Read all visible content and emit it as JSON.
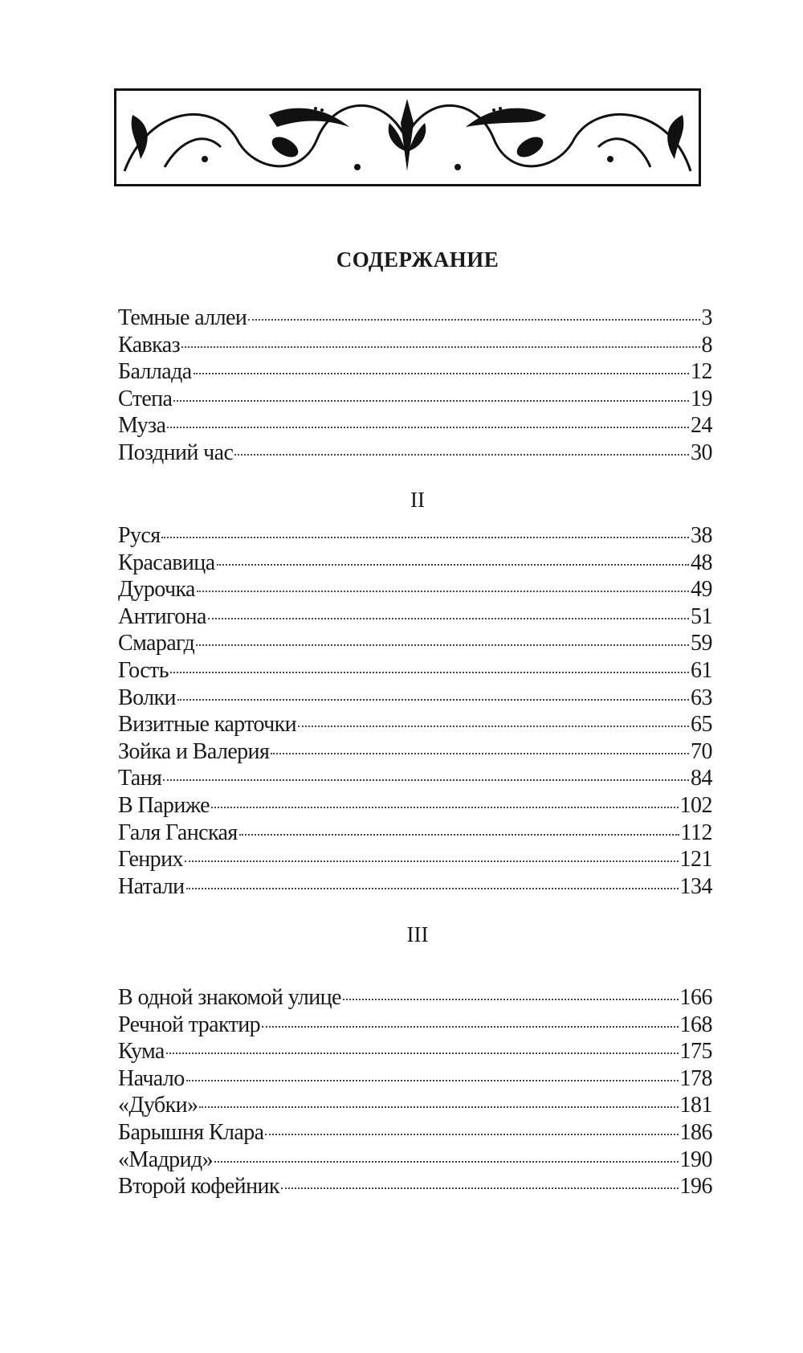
{
  "title": "СОДЕРЖАНИЕ",
  "sections": [
    {
      "heading": "",
      "entries": [
        {
          "title": "Темные аллеи",
          "page": "3"
        },
        {
          "title": "Кавказ",
          "page": "8"
        },
        {
          "title": "Баллада",
          "page": "12"
        },
        {
          "title": "Степа",
          "page": "19"
        },
        {
          "title": "Муза",
          "page": "24"
        },
        {
          "title": "Поздний час",
          "page": "30"
        }
      ]
    },
    {
      "heading": "II",
      "entries": [
        {
          "title": "Руся",
          "page": "38"
        },
        {
          "title": "Красавица",
          "page": "48"
        },
        {
          "title": "Дурочка",
          "page": "49"
        },
        {
          "title": "Антигона",
          "page": "51"
        },
        {
          "title": "Смарагд",
          "page": "59"
        },
        {
          "title": "Гость",
          "page": "61"
        },
        {
          "title": "Волки",
          "page": "63"
        },
        {
          "title": "Визитные карточки",
          "page": "65"
        },
        {
          "title": "Зойка и Валерия",
          "page": "70"
        },
        {
          "title": "Таня",
          "page": "84"
        },
        {
          "title": "В Париже",
          "page": "102"
        },
        {
          "title": "Галя Ганская",
          "page": "112"
        },
        {
          "title": "Генрих",
          "page": "121"
        },
        {
          "title": "Натали",
          "page": "134"
        }
      ]
    },
    {
      "heading": "III",
      "entries": [
        {
          "title": "В одной знакомой улице",
          "page": "166"
        },
        {
          "title": "Речной трактир",
          "page": "168"
        },
        {
          "title": "Кума",
          "page": "175"
        },
        {
          "title": "Начало",
          "page": "178"
        },
        {
          "title": "«Дубки»",
          "page": "181"
        },
        {
          "title": "Барышня Клара",
          "page": "186"
        },
        {
          "title": "«Мадрид»",
          "page": "190"
        },
        {
          "title": "Второй кофейник",
          "page": "196"
        }
      ]
    }
  ]
}
